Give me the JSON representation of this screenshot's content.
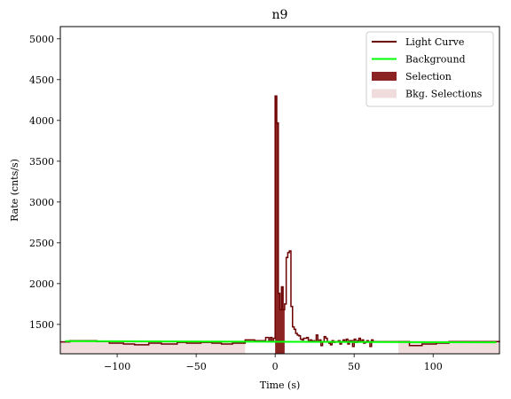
{
  "chart_data": {
    "type": "line",
    "title": "n9",
    "xlabel": "Time (s)",
    "ylabel": "Rate (cnts/s)",
    "xlim": [
      -136,
      142
    ],
    "ylim": [
      1140,
      5150
    ],
    "xticks": [
      -100,
      -50,
      0,
      50,
      100
    ],
    "yticks": [
      1500,
      2000,
      2500,
      3000,
      3500,
      4000,
      4500,
      5000
    ],
    "grid": false,
    "legend_position": "top-right",
    "legend": [
      {
        "label": "Light Curve",
        "kind": "line",
        "color": "#6b0000"
      },
      {
        "label": "Background",
        "kind": "line",
        "color": "#00ff00"
      },
      {
        "label": "Selection",
        "kind": "patch",
        "color": "#8b2323"
      },
      {
        "label": "Bkg. Selections",
        "kind": "patch",
        "color": "#f0dcdc"
      }
    ],
    "series": [
      {
        "name": "Light Curve",
        "color": "#6b0000",
        "step_edges": [
          -136,
          -130,
          -122,
          -113,
          -105,
          -96,
          -89,
          -80,
          -72,
          -62,
          -56,
          -47,
          -40,
          -34,
          -27,
          -19,
          -13,
          -9,
          -6,
          -4,
          -3,
          -2,
          -1,
          0,
          1,
          2,
          3,
          4,
          5,
          6,
          7,
          8,
          9,
          10,
          11,
          12,
          13,
          14,
          15,
          16,
          17,
          18,
          19,
          20,
          21,
          22,
          23,
          24,
          25,
          26,
          27,
          28,
          29,
          30,
          31,
          32,
          33,
          34,
          35,
          36,
          37,
          38,
          39,
          40,
          41,
          42,
          43,
          44,
          45,
          46,
          47,
          48,
          49,
          50,
          51,
          52,
          53,
          54,
          55,
          56,
          57,
          58,
          59,
          60,
          61,
          62,
          63,
          64,
          65,
          66,
          67,
          68,
          69,
          70,
          73,
          78,
          85,
          93,
          102,
          110,
          118,
          125,
          133,
          142
        ],
        "step_values": [
          1285,
          1300,
          1300,
          1290,
          1270,
          1260,
          1250,
          1270,
          1260,
          1280,
          1270,
          1280,
          1270,
          1260,
          1270,
          1310,
          1300,
          1300,
          1340,
          1290,
          1340,
          1290,
          1330,
          4300,
          3970,
          1880,
          1680,
          1960,
          1680,
          1750,
          2320,
          2380,
          2400,
          1720,
          1470,
          1440,
          1390,
          1370,
          1360,
          1320,
          1310,
          1330,
          1330,
          1340,
          1290,
          1310,
          1300,
          1300,
          1290,
          1370,
          1290,
          1310,
          1240,
          1290,
          1350,
          1330,
          1290,
          1270,
          1250,
          1300,
          1280,
          1290,
          1290,
          1300,
          1260,
          1290,
          1310,
          1290,
          1320,
          1260,
          1300,
          1300,
          1230,
          1320,
          1280,
          1300,
          1330,
          1290,
          1310,
          1270,
          1280,
          1300,
          1290,
          1230,
          1310,
          1290,
          1290,
          1290,
          1290,
          1290,
          1290,
          1290,
          1290,
          1290,
          1290,
          1290,
          1240,
          1260,
          1270,
          1290,
          1290,
          1290,
          1290,
          1285
        ]
      },
      {
        "name": "Background",
        "color": "#00ff00",
        "x": [
          -133,
          140
        ],
        "y": [
          1295,
          1280
        ]
      }
    ],
    "selection": {
      "x": [
        0,
        6
      ]
    },
    "bkg_selections": [
      {
        "x": [
          -136,
          -19
        ]
      },
      {
        "x": [
          78,
          142
        ]
      }
    ]
  }
}
